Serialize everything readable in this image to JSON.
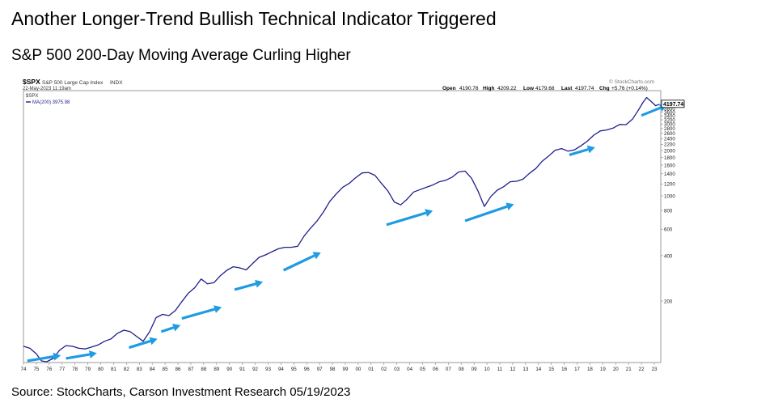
{
  "title": "Another Longer-Trend Bullish Technical Indicator Triggered",
  "subtitle": "S&P 500 200-Day Moving Average Curling Higher",
  "source": "Source: StockCharts, Carson Investment Research 05/19/2023",
  "chart_data": {
    "type": "line",
    "header": {
      "symbol": "$SPX",
      "name": "S&P 500 Large Cap Index",
      "exchange": "INDX",
      "date": "22-May-2023 11:19am",
      "watermark": "© StockCharts.com",
      "open_label": "Open",
      "open": "4190.78",
      "high_label": "High",
      "high": "4209.22",
      "low_label": "Low",
      "low": "4179.68",
      "last_label": "Last",
      "last": "4197.74",
      "chg_label": "Chg",
      "chg": "+5.76 (+0.14%)"
    },
    "legend": {
      "symbol": "$SPX",
      "series": "MA(200) 3975.98"
    },
    "last_value_label": "4197.74",
    "y_scale": "log",
    "ylim": [
      78,
      5000
    ],
    "xlim": [
      1974,
      2023.5
    ],
    "y_ticks": [
      200,
      400,
      600,
      800,
      1000,
      1200,
      1400,
      1600,
      1800,
      2000,
      2200,
      2400,
      2600,
      2800,
      3000,
      3200,
      3400,
      3600,
      3800,
      4000,
      4200
    ],
    "x_tick_labels": [
      "74",
      "75",
      "76",
      "77",
      "78",
      "79",
      "80",
      "81",
      "82",
      "83",
      "84",
      "85",
      "86",
      "87",
      "88",
      "89",
      "90",
      "91",
      "92",
      "93",
      "94",
      "95",
      "96",
      "97",
      "98",
      "99",
      "00",
      "01",
      "02",
      "03",
      "04",
      "05",
      "06",
      "07",
      "08",
      "09",
      "10",
      "11",
      "12",
      "13",
      "14",
      "15",
      "16",
      "17",
      "18",
      "19",
      "20",
      "21",
      "22",
      "23"
    ],
    "series": [
      {
        "color": "#1f1f8c",
        "x": [
          1974.0,
          1974.5,
          1975.0,
          1975.4,
          1975.8,
          1976.3,
          1976.8,
          1977.3,
          1977.8,
          1978.3,
          1978.8,
          1979.3,
          1979.8,
          1980.3,
          1980.8,
          1981.3,
          1981.8,
          1982.3,
          1982.8,
          1983.3,
          1983.8,
          1984.3,
          1984.8,
          1985.3,
          1985.8,
          1986.3,
          1986.8,
          1987.3,
          1987.8,
          1988.3,
          1988.8,
          1989.3,
          1989.8,
          1990.3,
          1990.8,
          1991.3,
          1991.8,
          1992.3,
          1992.8,
          1993.3,
          1993.8,
          1994.3,
          1994.8,
          1995.3,
          1995.8,
          1996.3,
          1996.8,
          1997.3,
          1997.8,
          1998.3,
          1998.8,
          1999.3,
          1999.8,
          2000.3,
          2000.8,
          2001.3,
          2001.8,
          2002.3,
          2002.8,
          2003.3,
          2003.8,
          2004.3,
          2004.8,
          2005.3,
          2005.8,
          2006.3,
          2006.8,
          2007.3,
          2007.8,
          2008.3,
          2008.8,
          2009.3,
          2009.8,
          2010.3,
          2010.8,
          2011.3,
          2011.8,
          2012.3,
          2012.8,
          2013.3,
          2013.8,
          2014.3,
          2014.8,
          2015.3,
          2015.8,
          2016.3,
          2016.8,
          2017.3,
          2017.8,
          2018.3,
          2018.8,
          2019.3,
          2019.8,
          2020.3,
          2020.8,
          2021.3,
          2021.8,
          2022.1,
          2022.4,
          2022.8,
          2023.1,
          2023.4
        ],
        "values": [
          100,
          97,
          89,
          80,
          79,
          83,
          94,
          101,
          100,
          97,
          96,
          99,
          102,
          108,
          112,
          122,
          128,
          125,
          116,
          108,
          125,
          155,
          163,
          160,
          173,
          198,
          225,
          245,
          280,
          260,
          265,
          295,
          320,
          338,
          332,
          322,
          355,
          390,
          405,
          425,
          445,
          455,
          455,
          462,
          540,
          610,
          680,
          780,
          920,
          1030,
          1140,
          1210,
          1320,
          1420,
          1430,
          1370,
          1210,
          1080,
          910,
          870,
          950,
          1060,
          1100,
          1140,
          1180,
          1240,
          1270,
          1330,
          1440,
          1460,
          1310,
          1080,
          850,
          990,
          1090,
          1150,
          1240,
          1250,
          1290,
          1410,
          1520,
          1700,
          1840,
          2010,
          2060,
          1980,
          2020,
          2150,
          2310,
          2530,
          2700,
          2740,
          2820,
          2980,
          2970,
          3230,
          3750,
          4150,
          4500,
          4200,
          3970,
          4060
        ]
      }
    ],
    "arrows": [
      {
        "x1": 1974.3,
        "y1": 80,
        "x2": 1976.9,
        "y2": 87
      },
      {
        "x1": 1977.3,
        "y1": 83,
        "x2": 1979.7,
        "y2": 90
      },
      {
        "x1": 1982.2,
        "y1": 98,
        "x2": 1984.4,
        "y2": 112
      },
      {
        "x1": 1984.7,
        "y1": 125,
        "x2": 1986.2,
        "y2": 138
      },
      {
        "x1": 1986.3,
        "y1": 153,
        "x2": 1989.4,
        "y2": 182
      },
      {
        "x1": 1990.4,
        "y1": 238,
        "x2": 1992.6,
        "y2": 268
      },
      {
        "x1": 1994.2,
        "y1": 320,
        "x2": 1997.1,
        "y2": 420
      },
      {
        "x1": 2002.2,
        "y1": 642,
        "x2": 2005.8,
        "y2": 795
      },
      {
        "x1": 2008.3,
        "y1": 682,
        "x2": 2012.1,
        "y2": 880
      },
      {
        "x1": 2016.4,
        "y1": 1870,
        "x2": 2018.4,
        "y2": 2100
      },
      {
        "x1": 2022.0,
        "y1": 3420,
        "x2": 2024.0,
        "y2": 4010
      }
    ],
    "grid": false,
    "legend_placement": "top-left"
  }
}
